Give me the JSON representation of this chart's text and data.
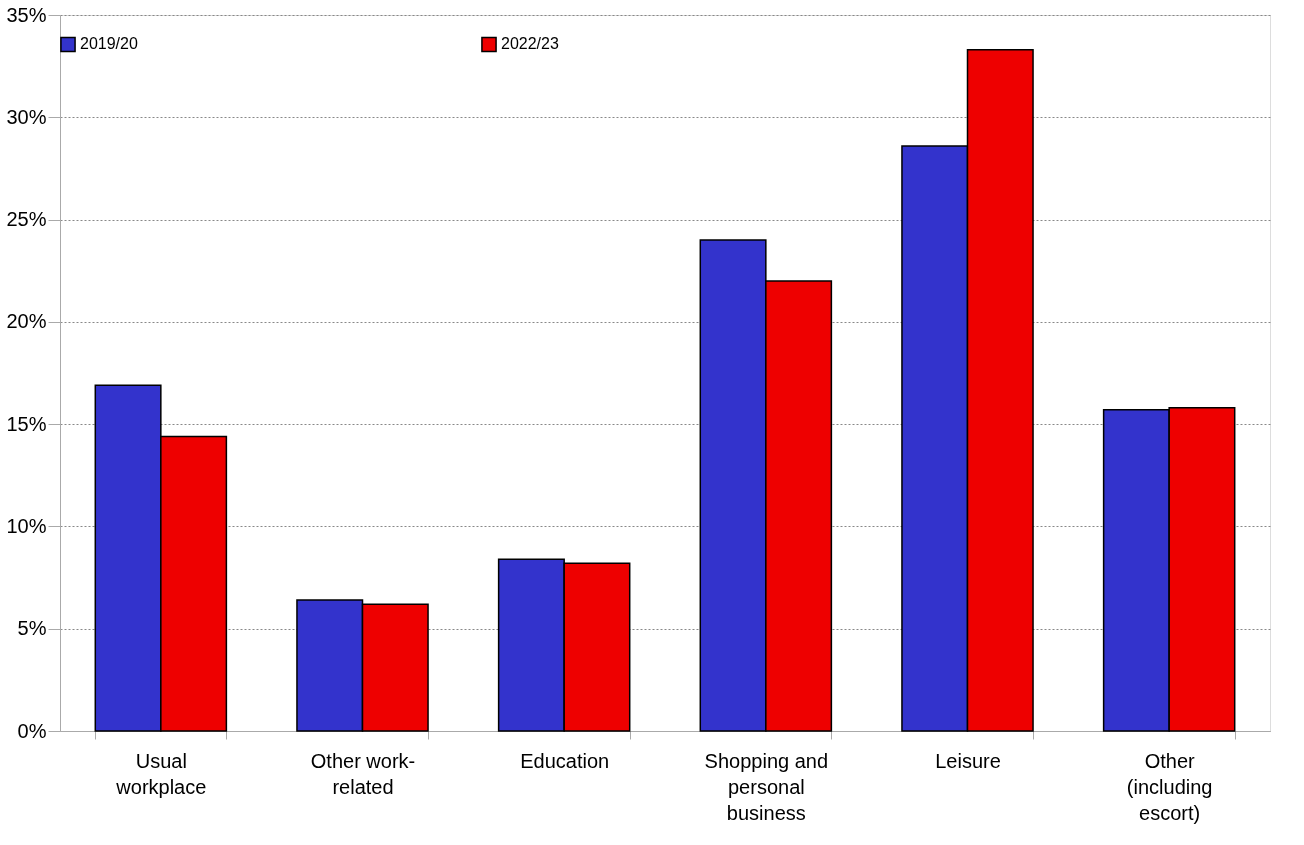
{
  "chart_data": {
    "type": "bar",
    "categories": [
      "Usual workplace",
      "Other work-related",
      "Education",
      "Shopping and personal business",
      "Leisure",
      "Other (including escort)"
    ],
    "series": [
      {
        "name": "2019/20",
        "color": "#3333cc",
        "values": [
          16.9,
          6.4,
          8.4,
          24.0,
          28.6,
          15.7
        ]
      },
      {
        "name": "2022/23",
        "color": "#ee0000",
        "values": [
          14.4,
          6.2,
          8.2,
          22.0,
          33.3,
          15.8
        ]
      }
    ],
    "ylim": [
      0,
      35
    ],
    "yticks": [
      {
        "value": 0,
        "label": "0%"
      },
      {
        "value": 5,
        "label": "5%"
      },
      {
        "value": 10,
        "label": "10%"
      },
      {
        "value": 15,
        "label": "15%"
      },
      {
        "value": 20,
        "label": "20%"
      },
      {
        "value": 25,
        "label": "25%"
      },
      {
        "value": 30,
        "label": "30%"
      },
      {
        "value": 35,
        "label": "35%"
      }
    ],
    "grid": "y",
    "legend": "top"
  }
}
